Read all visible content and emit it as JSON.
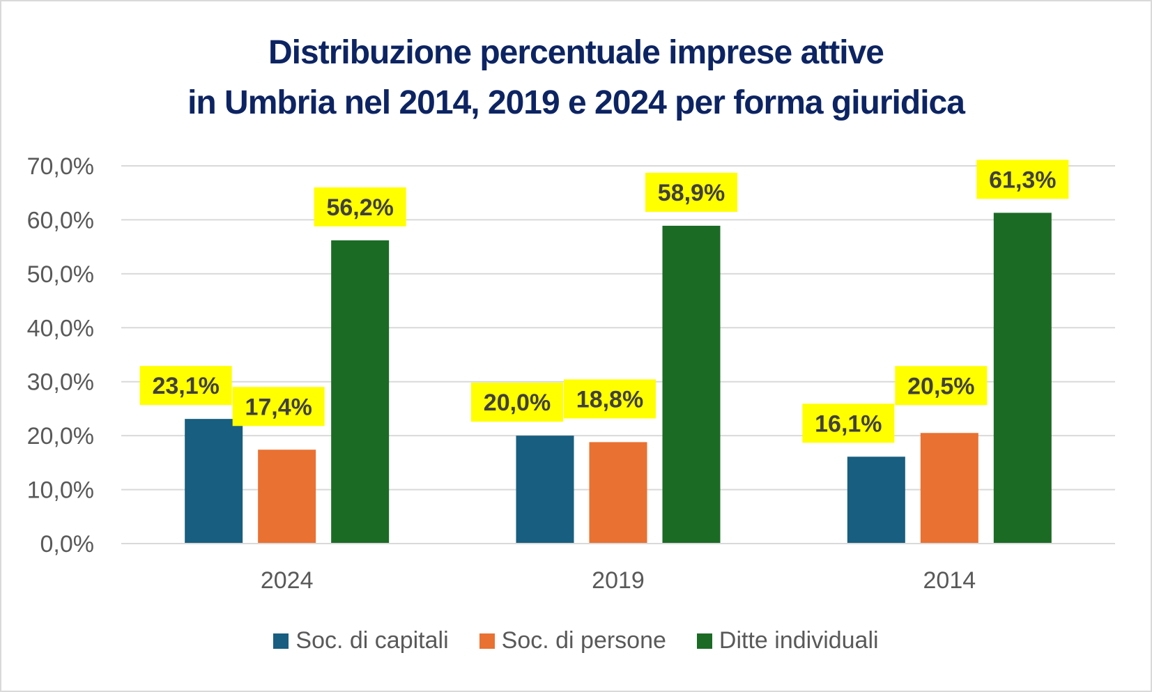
{
  "chart_data": {
    "type": "bar",
    "title": [
      "Distribuzione percentuale imprese attive",
      "in Umbria nel 2014, 2019 e 2024 per forma giuridica"
    ],
    "categories": [
      "2024",
      "2019",
      "2014"
    ],
    "series": [
      {
        "name": "Soc. di capitali",
        "color": "#175e80",
        "values": [
          23.1,
          20.0,
          16.1
        ],
        "labels": [
          "23,1%",
          "20,0%",
          "16,1%"
        ]
      },
      {
        "name": "Soc. di persone",
        "color": "#e97132",
        "values": [
          17.4,
          18.8,
          20.5
        ],
        "labels": [
          "17,4%",
          "18,8%",
          "20,5%"
        ]
      },
      {
        "name": "Ditte individuali",
        "color": "#1b6b25",
        "values": [
          56.2,
          58.9,
          61.3
        ],
        "labels": [
          "56,2%",
          "58,9%",
          "61,3%"
        ]
      }
    ],
    "ylim": [
      0,
      70
    ],
    "yticks": [
      0,
      10,
      20,
      30,
      40,
      50,
      60,
      70
    ],
    "ytick_labels": [
      "0,0%",
      "10,0%",
      "20,0%",
      "30,0%",
      "40,0%",
      "50,0%",
      "60,0%",
      "70,0%"
    ],
    "xlabel": "",
    "ylabel": "",
    "grid": true,
    "legend": "bottom",
    "data_label_bg": "#ffff00",
    "title_color": "#0d2463"
  }
}
